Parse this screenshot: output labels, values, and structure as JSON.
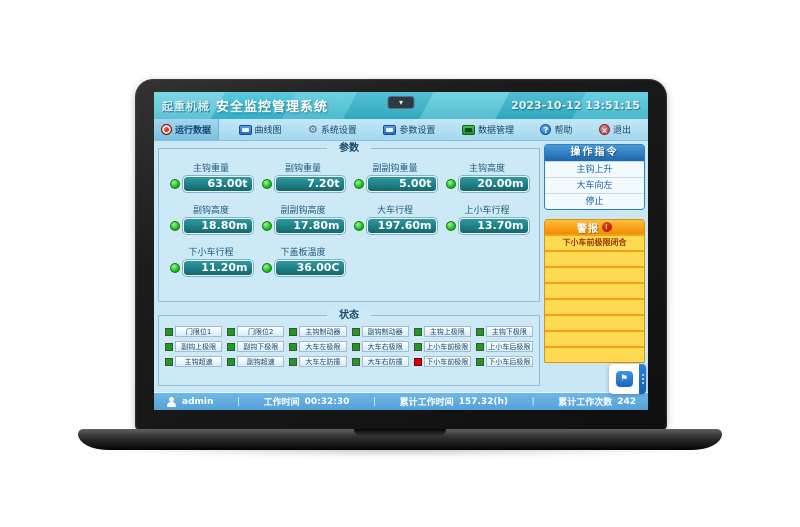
{
  "titlebar": {
    "logo": "起重机械",
    "title": "安全监控管理系统",
    "datetime": "2023-10-12 13:51:15"
  },
  "icons": {
    "dropdown": "▾",
    "gear": "⚙",
    "help": "?",
    "exit": "×",
    "alarm": "!",
    "widget": "⚑"
  },
  "menu": {
    "items": [
      {
        "label": "运行数据",
        "icon": "record-icon",
        "active": true
      },
      {
        "label": "曲线图",
        "icon": "curve-chart-icon",
        "active": false
      },
      {
        "label": "系统设置",
        "icon": "gear-icon",
        "active": false
      },
      {
        "label": "参数设置",
        "icon": "params-screen-icon",
        "active": false
      },
      {
        "label": "数据管理",
        "icon": "data-screen-icon",
        "active": false
      },
      {
        "label": "帮助",
        "icon": "help-icon",
        "active": false
      },
      {
        "label": "退出",
        "icon": "exit-icon",
        "active": false
      }
    ]
  },
  "parameters": {
    "group_title": "参数",
    "items": [
      {
        "label": "主钩重量",
        "value": "63.00t"
      },
      {
        "label": "副钩重量",
        "value": "7.20t"
      },
      {
        "label": "副副钩重量",
        "value": "5.00t"
      },
      {
        "label": "主钩高度",
        "value": "20.00m"
      },
      {
        "label": "副钩高度",
        "value": "18.80m"
      },
      {
        "label": "副副钩高度",
        "value": "17.80m"
      },
      {
        "label": "大车行程",
        "value": "197.60m"
      },
      {
        "label": "上小车行程",
        "value": "13.70m"
      },
      {
        "label": "下小车行程",
        "value": "11.20m"
      },
      {
        "label": "下盖板温度",
        "value": "36.00C"
      }
    ]
  },
  "status": {
    "group_title": "状态",
    "items": [
      {
        "label": "门限位1",
        "state": "green"
      },
      {
        "label": "门限位2",
        "state": "green"
      },
      {
        "label": "主钩制动器",
        "state": "green"
      },
      {
        "label": "副钩制动器",
        "state": "green"
      },
      {
        "label": "主钩上极限",
        "state": "green"
      },
      {
        "label": "主钩下极限",
        "state": "green"
      },
      {
        "label": "副钩上极限",
        "state": "green"
      },
      {
        "label": "副钩下极限",
        "state": "green"
      },
      {
        "label": "大车左极限",
        "state": "green"
      },
      {
        "label": "大车右极限",
        "state": "green"
      },
      {
        "label": "上小车前极限",
        "state": "green"
      },
      {
        "label": "上小车后极限",
        "state": "green"
      },
      {
        "label": "主钩超速",
        "state": "green"
      },
      {
        "label": "副钩超速",
        "state": "green"
      },
      {
        "label": "大车左防撞",
        "state": "green"
      },
      {
        "label": "大车右防撞",
        "state": "green"
      },
      {
        "label": "下小车前极限",
        "state": "red"
      },
      {
        "label": "下小车后极限",
        "state": "green"
      }
    ]
  },
  "commands": {
    "header": "操作指令",
    "items": [
      {
        "label": "主钩上升"
      },
      {
        "label": "大车向左"
      },
      {
        "label": "停止"
      }
    ]
  },
  "alarms": {
    "header": "警报",
    "items": [
      {
        "text": "下小车前极限闭合"
      },
      {
        "text": ""
      },
      {
        "text": ""
      },
      {
        "text": ""
      },
      {
        "text": ""
      },
      {
        "text": ""
      },
      {
        "text": ""
      },
      {
        "text": ""
      }
    ]
  },
  "statusbar": {
    "user": "admin",
    "sep": "|",
    "work_time_label": "工作时间",
    "work_time_value": "00:32:30",
    "total_time_label": "累计工作时间",
    "total_time_value": "157.32(h)",
    "total_count_label": "累计工作次数",
    "total_count_value": "242"
  }
}
